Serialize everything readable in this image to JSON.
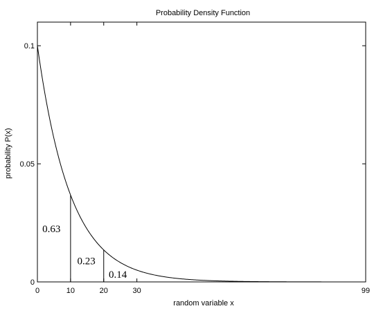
{
  "chart_data": {
    "type": "line",
    "title": "Probability Density Function",
    "xlabel": "random variable x",
    "ylabel": "probability P(x)",
    "xlim": [
      0,
      99
    ],
    "ylim": [
      0,
      0.11
    ],
    "x_ticks": [
      0,
      10,
      20,
      30,
      99
    ],
    "x_tick_labels": [
      "0",
      "10",
      "20",
      "30",
      "99"
    ],
    "y_ticks": [
      0,
      0.05,
      0.1
    ],
    "y_tick_labels": [
      "0",
      "0.05",
      "0.1"
    ],
    "grid": false,
    "legend": "none",
    "series": [
      {
        "function": "0.1*exp(-x/10)",
        "x": [
          0,
          5,
          10,
          15,
          20,
          25,
          30,
          40,
          50,
          60,
          70,
          80,
          90,
          99
        ],
        "y": [
          0.1,
          0.0607,
          0.0368,
          0.0223,
          0.0135,
          0.0082,
          0.005,
          0.0018,
          0.0007,
          0.0002,
          0.0001,
          0.0,
          0.0,
          0.0
        ]
      }
    ],
    "markers": [
      {
        "x": 10,
        "y": 0.0368
      },
      {
        "x": 20,
        "y": 0.0135
      }
    ],
    "annotations": [
      {
        "text": "0.63",
        "x": 1.5,
        "y": 0.021
      },
      {
        "text": "0.23",
        "x": 12,
        "y": 0.0075
      },
      {
        "text": "0.14",
        "x": 21.5,
        "y": 0.0017
      }
    ],
    "colors": {
      "line": "#000000",
      "frame": "#000000"
    }
  }
}
